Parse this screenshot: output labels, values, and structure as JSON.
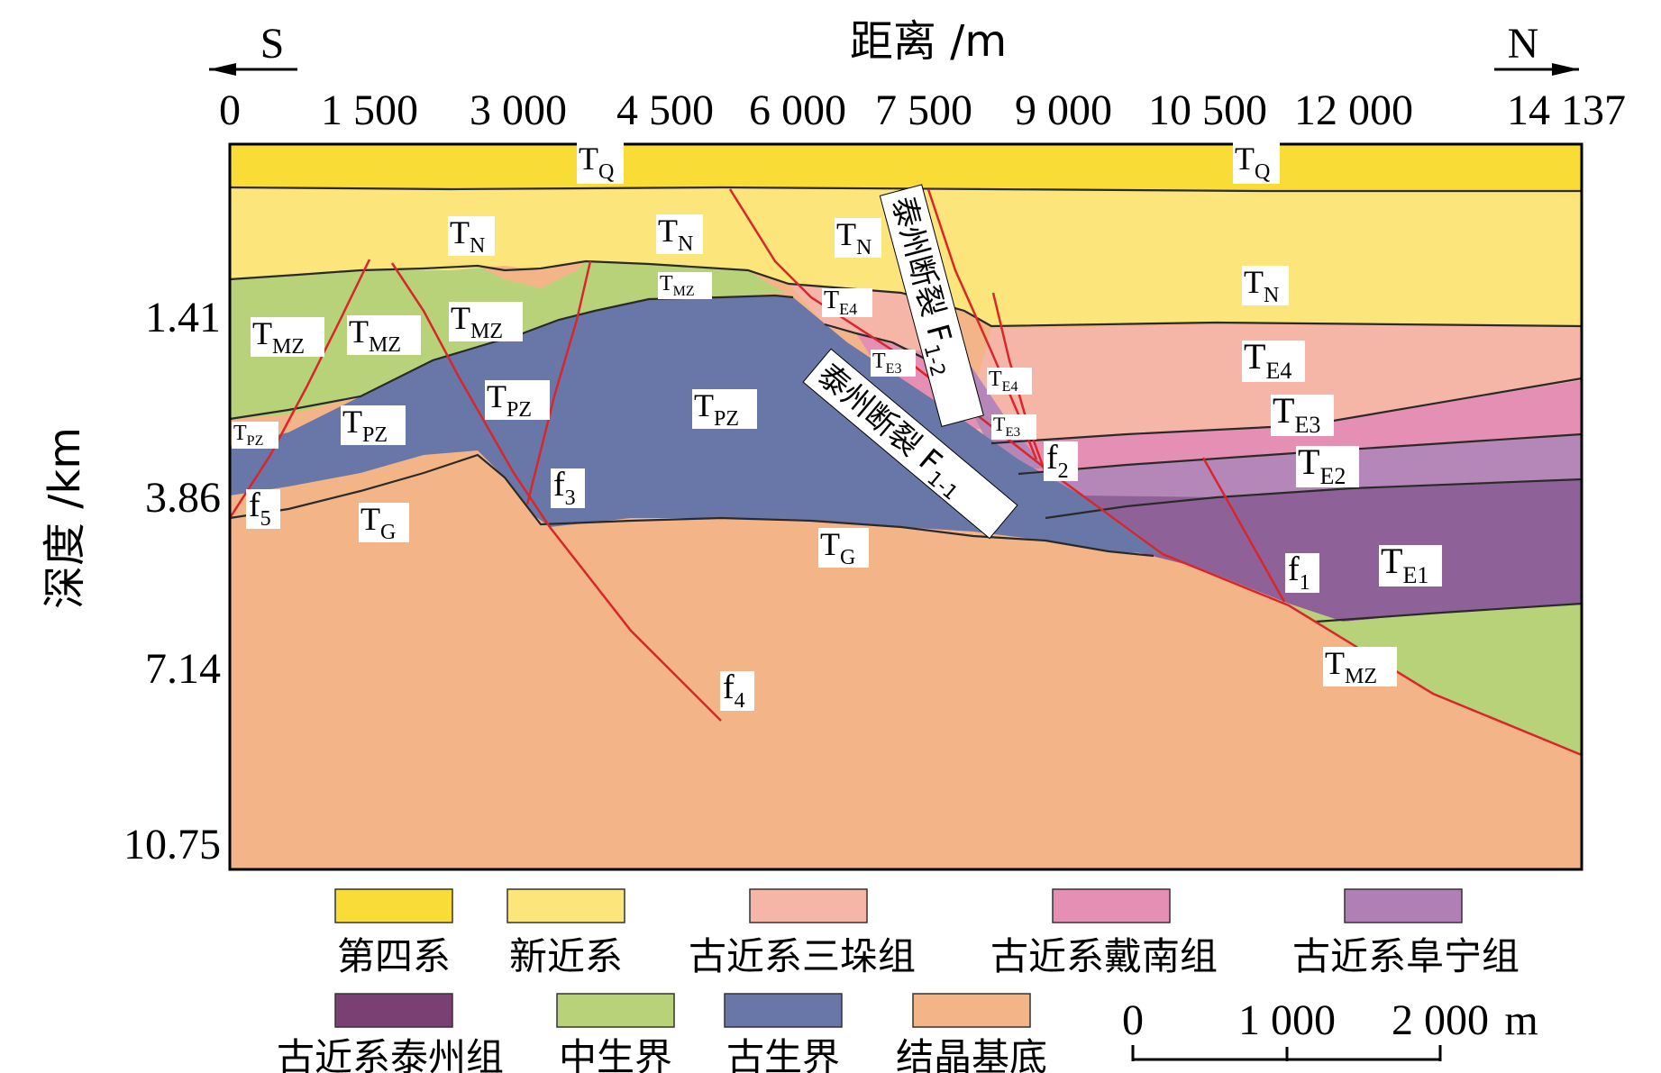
{
  "header": {
    "left_dir": "S",
    "right_dir": "N",
    "distance_title": "距离 /m",
    "distance_ticks": [
      "0",
      "1 500",
      "3 000",
      "4 500",
      "6 000",
      "7 500",
      "9 000",
      "10 500",
      "12 000",
      "14 137"
    ]
  },
  "depth_axis": {
    "title": "深度 /km",
    "ticks": [
      "1.41",
      "3.86",
      "7.14",
      "10.75"
    ]
  },
  "layers": {
    "tq": "T",
    "tq_sub": "Q",
    "tn": "T",
    "tn_sub": "N",
    "tmz": "T",
    "tmz_sub": "MZ",
    "tpz": "T",
    "tpz_sub": "PZ",
    "tg": "T",
    "tg_sub": "G",
    "te4": "T",
    "te4_sub": "E4",
    "te3": "T",
    "te3_sub": "E3",
    "te2": "T",
    "te2_sub": "E2",
    "te1": "T",
    "te1_sub": "E1"
  },
  "faults": {
    "f1": "f",
    "f1_sub": "1",
    "f2": "f",
    "f2_sub": "2",
    "f3": "f",
    "f3_sub": "3",
    "f4": "f",
    "f4_sub": "4",
    "f5": "f",
    "f5_sub": "5",
    "F11_name": "泰州断裂 F",
    "F11_sub": "1-1",
    "F12_name": "泰州断裂 F",
    "F12_sub": "1-2"
  },
  "legend": [
    {
      "label": "第四系",
      "color": "#f9dc36"
    },
    {
      "label": "新近系",
      "color": "#fce57a"
    },
    {
      "label": "古近系三垛组",
      "color": "#f5b6a8"
    },
    {
      "label": "古近系戴南组",
      "color": "#e58fb5"
    },
    {
      "label": "古近系阜宁组",
      "color": "#b07fb6"
    },
    {
      "label": "古近系泰州组",
      "color": "#7a3f73"
    },
    {
      "label": "中生界",
      "color": "#b8d27a"
    },
    {
      "label": "古生界",
      "color": "#6977a8"
    },
    {
      "label": "结晶基底",
      "color": "#f3b487"
    }
  ],
  "scale_bar": {
    "ticks": [
      "0",
      "1 000",
      "2 000"
    ],
    "unit": "m"
  }
}
